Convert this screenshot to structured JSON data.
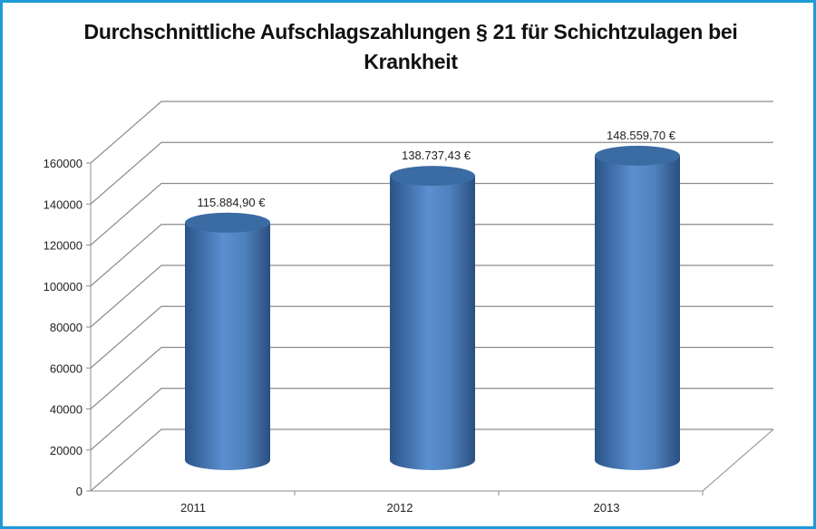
{
  "chart_data": {
    "type": "bar",
    "style": "3d-cylinder",
    "title_line1": "Durchschnittliche Aufschlagszahlungen § 21 für Schichtzulagen bei",
    "title_line2": "Krankheit",
    "categories": [
      "2011",
      "2012",
      "2013"
    ],
    "values": [
      115884.9,
      138737.43,
      148559.7
    ],
    "data_labels": [
      "115.884,90 €",
      "138.737,43 €",
      "148.559,70 €"
    ],
    "yticks": [
      "0",
      "20000",
      "40000",
      "60000",
      "80000",
      "100000",
      "120000",
      "140000",
      "160000"
    ],
    "ylim": [
      0,
      160000
    ],
    "xlabel": "",
    "ylabel": "",
    "grid": true,
    "legend": "none",
    "colors": {
      "bar": "#4F81BD",
      "bar_dark": "#2E5A8E",
      "top": "#3B6BA3",
      "grid": "#8C8C8C",
      "border": "#1E9BD7"
    }
  }
}
